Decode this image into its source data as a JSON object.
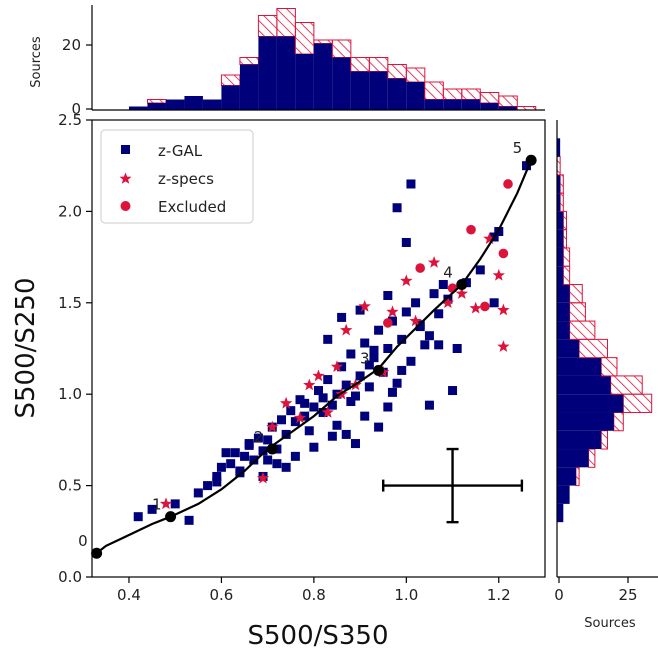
{
  "colors": {
    "navy": "#00007a",
    "red": "#dc143c",
    "curve": "#000000"
  },
  "chart_data": [
    {
      "type": "scatter",
      "xlabel": "S500/S350",
      "ylabel": "S500/S250",
      "xlim": [
        0.32,
        1.3
      ],
      "ylim": [
        0.0,
        2.5
      ],
      "xticks": [
        "0.4",
        "0.6",
        "0.8",
        "1.0",
        "1.2"
      ],
      "yticks": [
        "0.0",
        "0.5",
        "1.0",
        "1.5",
        "2.0",
        "2.5"
      ],
      "legend": {
        "placement": "top-left",
        "entries": [
          "z-GAL",
          "z-specs",
          "Excluded"
        ]
      },
      "series": [
        {
          "name": "z-GAL",
          "marker": "square",
          "color": "#00007a",
          "x": [
            0.42,
            0.45,
            0.5,
            0.53,
            0.55,
            0.57,
            0.59,
            0.6,
            0.62,
            0.63,
            0.64,
            0.65,
            0.66,
            0.67,
            0.68,
            0.69,
            0.7,
            0.71,
            0.72,
            0.73,
            0.74,
            0.75,
            0.76,
            0.77,
            0.78,
            0.79,
            0.8,
            0.81,
            0.82,
            0.83,
            0.84,
            0.85,
            0.86,
            0.87,
            0.88,
            0.89,
            0.9,
            0.91,
            0.92,
            0.93,
            0.94,
            0.95,
            0.96,
            0.97,
            0.98,
            0.99,
            1.0,
            1.01,
            1.02,
            1.03,
            1.05,
            1.06,
            1.07,
            1.08,
            0.78,
            0.82,
            0.85,
            0.88,
            0.91,
            0.94,
            0.97,
            0.99,
            1.03,
            1.07,
            1.11,
            1.16,
            1.19,
            0.74,
            0.7,
            0.66,
            0.61,
            0.83,
            0.86,
            0.9,
            0.93,
            0.96,
            1.0,
            1.04,
            1.09,
            1.13,
            1.19,
            1.2,
            1.26,
            1.01,
            0.98,
            0.92,
            0.87,
            0.8,
            0.76,
            0.72,
            0.69,
            0.64,
            0.59,
            0.89,
            0.84,
            0.96,
            1.05,
            1.1
          ],
          "y": [
            0.33,
            0.37,
            0.4,
            0.31,
            0.46,
            0.5,
            0.55,
            0.6,
            0.62,
            0.68,
            0.58,
            0.66,
            0.72,
            0.64,
            0.76,
            0.69,
            0.75,
            0.82,
            0.7,
            0.86,
            0.78,
            0.91,
            0.85,
            0.97,
            0.88,
            0.8,
            0.93,
            1.02,
            0.98,
            1.08,
            0.94,
            1.0,
            1.15,
            1.05,
            1.22,
            0.99,
            1.1,
            1.28,
            1.04,
            1.2,
            1.35,
            1.12,
            1.25,
            1.4,
            1.06,
            1.3,
            1.45,
            1.18,
            1.5,
            1.38,
            1.32,
            1.55,
            1.44,
            1.6,
            0.95,
            0.9,
            0.83,
            0.96,
            0.88,
            0.82,
            1.01,
            1.13,
            1.37,
            1.27,
            1.25,
            1.68,
            1.86,
            0.6,
            0.64,
            0.73,
            0.68,
            1.3,
            1.42,
            1.46,
            1.24,
            1.54,
            1.83,
            1.27,
            1.52,
            1.61,
            1.5,
            1.89,
            2.25,
            2.15,
            2.02,
            1.16,
            0.78,
            0.71,
            0.66,
            0.62,
            0.55,
            0.57,
            0.52,
            0.73,
            0.77,
            0.93,
            0.94,
            1.02
          ]
        },
        {
          "name": "z-specs",
          "marker": "star",
          "color": "#dc143c",
          "x": [
            0.48,
            0.69,
            0.71,
            0.74,
            0.77,
            0.79,
            0.81,
            0.83,
            0.85,
            0.87,
            0.89,
            0.91,
            0.95,
            0.97,
            1.0,
            1.02,
            1.06,
            1.09,
            1.12,
            1.15,
            1.18,
            1.21,
            1.21,
            1.2,
            0.86
          ],
          "y": [
            0.4,
            0.54,
            0.82,
            0.95,
            0.87,
            1.05,
            1.1,
            0.9,
            1.15,
            1.35,
            1.05,
            1.48,
            1.12,
            1.45,
            1.62,
            1.4,
            1.72,
            1.5,
            1.55,
            1.47,
            1.85,
            1.46,
            1.26,
            1.65,
            1.0
          ]
        },
        {
          "name": "Excluded",
          "marker": "circle",
          "color": "#dc143c",
          "x": [
            0.96,
            1.03,
            1.1,
            1.14,
            1.17,
            1.21,
            1.22
          ],
          "y": [
            1.39,
            1.69,
            1.58,
            1.9,
            1.48,
            1.77,
            2.15
          ]
        }
      ],
      "curve": {
        "color": "#000000",
        "x": [
          0.33,
          0.35,
          0.4,
          0.45,
          0.49,
          0.55,
          0.6,
          0.65,
          0.7,
          0.75,
          0.8,
          0.85,
          0.9,
          0.94,
          0.98,
          1.02,
          1.06,
          1.09,
          1.12,
          1.16,
          1.2,
          1.24,
          1.27
        ],
        "y": [
          0.13,
          0.17,
          0.23,
          0.29,
          0.33,
          0.4,
          0.48,
          0.58,
          0.7,
          0.79,
          0.88,
          0.99,
          1.07,
          1.14,
          1.26,
          1.36,
          1.46,
          1.53,
          1.6,
          1.74,
          1.9,
          2.1,
          2.28
        ]
      },
      "labeled_points": [
        {
          "label": "0",
          "x": 0.33,
          "y": 0.13
        },
        {
          "label": "1",
          "x": 0.49,
          "y": 0.33
        },
        {
          "label": "2",
          "x": 0.71,
          "y": 0.7
        },
        {
          "label": "3",
          "x": 0.94,
          "y": 1.13
        },
        {
          "label": "4",
          "x": 1.12,
          "y": 1.6
        },
        {
          "label": "5",
          "x": 1.27,
          "y": 2.28
        }
      ],
      "error_bar": {
        "x": 1.1,
        "y": 0.5,
        "xerr": 0.15,
        "yerr": 0.2
      }
    },
    {
      "type": "bar",
      "orientation": "vertical",
      "ylabel": "Sources",
      "yticks": [
        "0",
        "20"
      ],
      "ylim": [
        0,
        30
      ],
      "bin_edges": [
        0.32,
        0.36,
        0.4,
        0.44,
        0.48,
        0.52,
        0.56,
        0.6,
        0.64,
        0.68,
        0.72,
        0.76,
        0.8,
        0.84,
        0.88,
        0.92,
        0.96,
        1.0,
        1.04,
        1.08,
        1.12,
        1.16,
        1.2,
        1.24,
        1.28
      ],
      "series": [
        {
          "name": "z-GAL",
          "values": [
            0,
            0,
            1,
            2,
            3,
            4,
            3,
            7,
            13,
            21,
            21,
            16,
            19,
            15,
            11,
            11,
            9,
            8,
            3,
            3,
            3,
            2,
            1,
            0
          ]
        },
        {
          "name": "all",
          "values": [
            0,
            0,
            1,
            3,
            3,
            4,
            3,
            10,
            15,
            27,
            29,
            25,
            20,
            20,
            15,
            15,
            13,
            12,
            8,
            6,
            6,
            5,
            4,
            1
          ]
        }
      ]
    },
    {
      "type": "bar",
      "orientation": "horizontal",
      "xlabel": "Sources",
      "xticks": [
        "0",
        "25"
      ],
      "xlim": [
        0,
        32
      ],
      "bin_edges": [
        0.0,
        0.1,
        0.2,
        0.3,
        0.4,
        0.5,
        0.6,
        0.7,
        0.8,
        0.9,
        1.0,
        1.1,
        1.2,
        1.3,
        1.4,
        1.5,
        1.6,
        1.7,
        1.8,
        1.9,
        2.0,
        2.1,
        2.2,
        2.3,
        2.4
      ],
      "series": [
        {
          "name": "z-GAL",
          "values": [
            0,
            0,
            0,
            2,
            4,
            6,
            10,
            14,
            18,
            21,
            17,
            14,
            7,
            4,
            4,
            4,
            2,
            2,
            2,
            2,
            1,
            1,
            0,
            1
          ]
        },
        {
          "name": "all",
          "values": [
            0,
            0,
            0,
            2,
            4,
            7,
            12,
            16,
            21,
            30,
            27,
            19,
            16,
            12,
            9,
            8,
            4,
            4,
            3,
            3,
            2,
            2,
            1,
            1
          ]
        }
      ]
    }
  ]
}
